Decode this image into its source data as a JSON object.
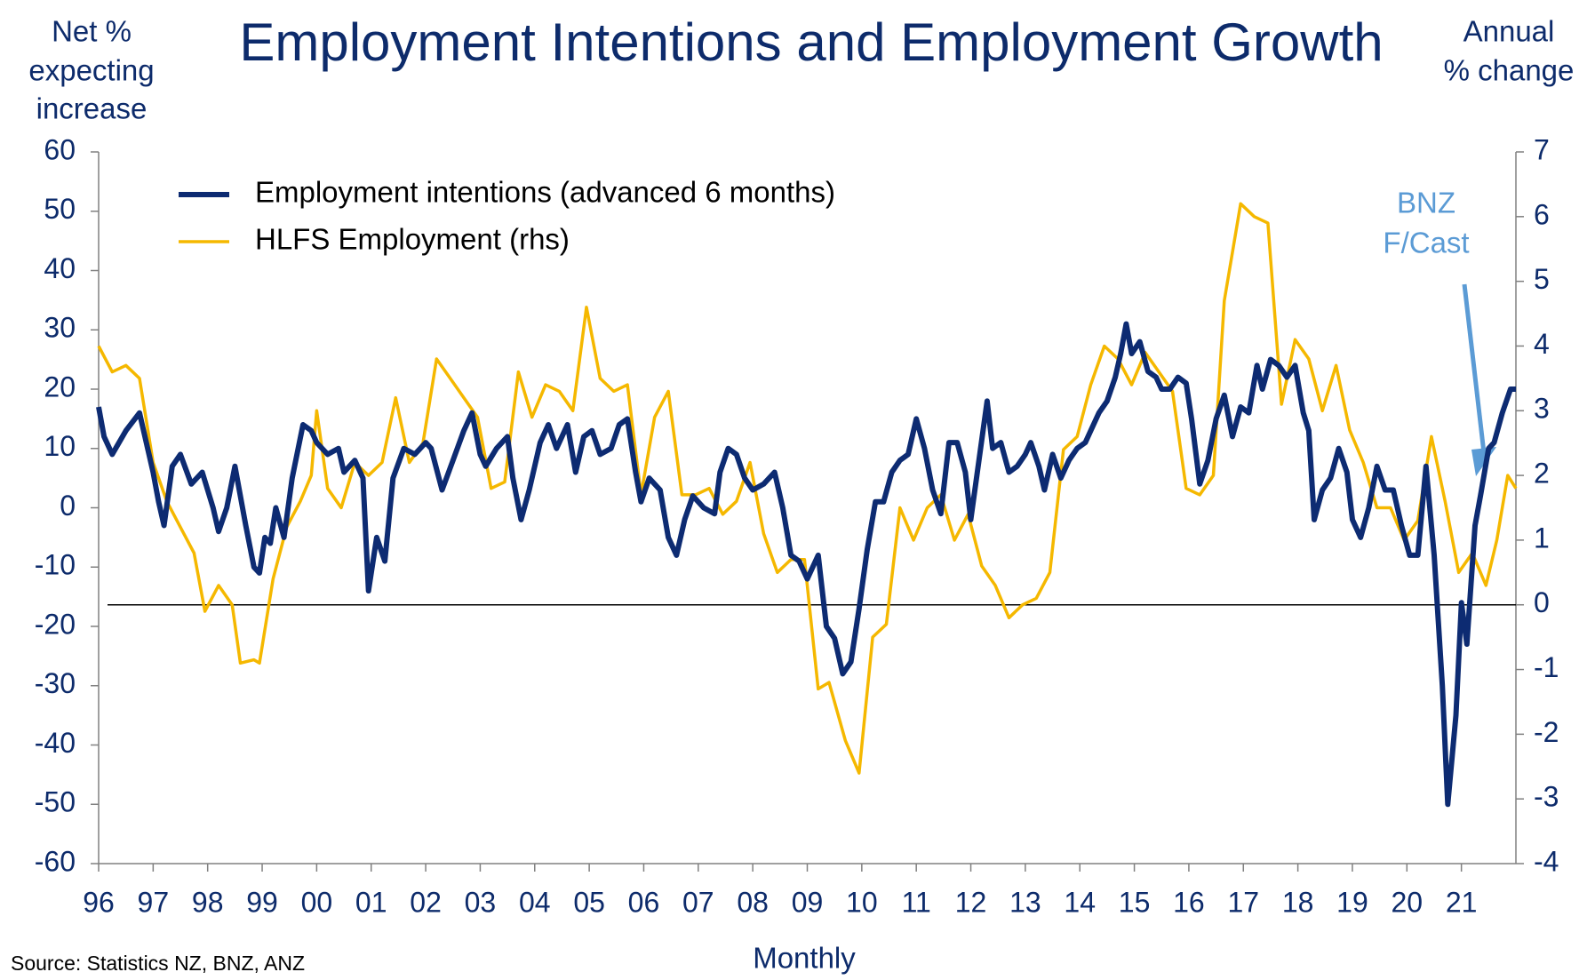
{
  "chart_data": {
    "type": "line",
    "title": "Employment Intentions and Employment Growth",
    "y_label": [
      "Net %",
      "expecting",
      "increase"
    ],
    "y2_label": [
      "Annual",
      "% change"
    ],
    "x_label": "Monthly",
    "source": "Source: Statistics NZ, BNZ, ANZ",
    "annotation": [
      "BNZ",
      "F/Cast"
    ],
    "annotation_color": "#5b9bd5",
    "legend": "upper left",
    "xlim": [
      1996,
      2022
    ],
    "xticks": [
      {
        "value": 1996,
        "label": "96"
      },
      {
        "value": 1997,
        "label": "97"
      },
      {
        "value": 1998,
        "label": "98"
      },
      {
        "value": 1999,
        "label": "99"
      },
      {
        "value": 2000,
        "label": "00"
      },
      {
        "value": 2001,
        "label": "01"
      },
      {
        "value": 2002,
        "label": "02"
      },
      {
        "value": 2003,
        "label": "03"
      },
      {
        "value": 2004,
        "label": "04"
      },
      {
        "value": 2005,
        "label": "05"
      },
      {
        "value": 2006,
        "label": "06"
      },
      {
        "value": 2007,
        "label": "07"
      },
      {
        "value": 2008,
        "label": "08"
      },
      {
        "value": 2009,
        "label": "09"
      },
      {
        "value": 2010,
        "label": "10"
      },
      {
        "value": 2011,
        "label": "11"
      },
      {
        "value": 2012,
        "label": "12"
      },
      {
        "value": 2013,
        "label": "13"
      },
      {
        "value": 2014,
        "label": "14"
      },
      {
        "value": 2015,
        "label": "15"
      },
      {
        "value": 2016,
        "label": "16"
      },
      {
        "value": 2017,
        "label": "17"
      },
      {
        "value": 2018,
        "label": "18"
      },
      {
        "value": 2019,
        "label": "19"
      },
      {
        "value": 2020,
        "label": "20"
      },
      {
        "value": 2021,
        "label": "21"
      }
    ],
    "ylim": [
      -60,
      60
    ],
    "yticks": [
      -60,
      -50,
      -40,
      -30,
      -20,
      -10,
      0,
      10,
      20,
      30,
      40,
      50,
      60
    ],
    "y2lim": [
      -4,
      7
    ],
    "y2ticks": [
      -4,
      -3,
      -2,
      -1,
      0,
      1,
      2,
      3,
      4,
      5,
      6,
      7
    ],
    "zero_line_axis": "y2",
    "series": [
      {
        "name": "Employment intentions (advanced 6 months)",
        "color": "#0d2b72",
        "axis": "y",
        "x": [
          1996.0,
          1996.1,
          1996.25,
          1996.5,
          1996.75,
          1997.0,
          1997.1,
          1997.2,
          1997.35,
          1997.5,
          1997.7,
          1997.9,
          1998.1,
          1998.2,
          1998.35,
          1998.5,
          1998.7,
          1998.85,
          1998.95,
          1999.05,
          1999.15,
          1999.25,
          1999.4,
          1999.55,
          1999.75,
          1999.9,
          2000.0,
          2000.2,
          2000.4,
          2000.5,
          2000.7,
          2000.85,
          2000.95,
          2001.1,
          2001.25,
          2001.4,
          2001.6,
          2001.8,
          2002.0,
          2002.1,
          2002.3,
          2002.5,
          2002.7,
          2002.85,
          2003.0,
          2003.1,
          2003.3,
          2003.5,
          2003.6,
          2003.75,
          2003.9,
          2004.1,
          2004.25,
          2004.4,
          2004.6,
          2004.75,
          2004.9,
          2005.05,
          2005.2,
          2005.4,
          2005.55,
          2005.7,
          2005.85,
          2005.95,
          2006.1,
          2006.3,
          2006.45,
          2006.6,
          2006.75,
          2006.9,
          2007.1,
          2007.3,
          2007.4,
          2007.55,
          2007.7,
          2007.85,
          2008.0,
          2008.2,
          2008.4,
          2008.55,
          2008.7,
          2008.85,
          2009.0,
          2009.2,
          2009.35,
          2009.5,
          2009.65,
          2009.8,
          2009.95,
          2010.1,
          2010.25,
          2010.4,
          2010.55,
          2010.7,
          2010.85,
          2011.0,
          2011.15,
          2011.3,
          2011.45,
          2011.6,
          2011.75,
          2011.9,
          2012.0,
          2012.15,
          2012.3,
          2012.4,
          2012.55,
          2012.7,
          2012.85,
          2013.0,
          2013.1,
          2013.25,
          2013.35,
          2013.5,
          2013.65,
          2013.8,
          2013.95,
          2014.1,
          2014.2,
          2014.35,
          2014.5,
          2014.65,
          2014.75,
          2014.85,
          2014.95,
          2015.1,
          2015.25,
          2015.4,
          2015.5,
          2015.65,
          2015.8,
          2015.95,
          2016.05,
          2016.2,
          2016.35,
          2016.5,
          2016.65,
          2016.8,
          2016.95,
          2017.1,
          2017.25,
          2017.35,
          2017.5,
          2017.65,
          2017.8,
          2017.95,
          2018.1,
          2018.2,
          2018.3,
          2018.45,
          2018.6,
          2018.75,
          2018.9,
          2019.0,
          2019.15,
          2019.3,
          2019.45,
          2019.6,
          2019.75,
          2019.9,
          2020.05,
          2020.2,
          2020.35,
          2020.5,
          2020.65,
          2020.75,
          2020.9,
          2021.0,
          2021.1,
          2021.25,
          2021.35,
          2021.5,
          2021.6,
          2021.75,
          2021.9,
          2022.0
        ],
        "values": [
          17,
          12,
          9,
          13,
          16,
          6,
          1,
          -3,
          7,
          9,
          4,
          6,
          0,
          -4,
          0,
          7,
          -3,
          -10,
          -11,
          -5,
          -6,
          0,
          -5,
          5,
          14,
          13,
          11,
          9,
          10,
          6,
          8,
          5,
          -14,
          -5,
          -9,
          5,
          10,
          9,
          11,
          10,
          3,
          8,
          13,
          16,
          9,
          7,
          10,
          12,
          5,
          -2,
          3,
          11,
          14,
          10,
          14,
          6,
          12,
          13,
          9,
          10,
          14,
          15,
          6,
          1,
          5,
          3,
          -5,
          -8,
          -2,
          2,
          0,
          -1,
          6,
          10,
          9,
          5,
          3,
          4,
          6,
          0,
          -8,
          -9,
          -12,
          -8,
          -20,
          -22,
          -28,
          -26,
          -17,
          -7,
          1,
          1,
          6,
          8,
          9,
          15,
          10,
          3,
          -1,
          11,
          11,
          6,
          -2,
          8,
          18,
          10,
          11,
          6,
          7,
          9,
          11,
          7,
          3,
          9,
          5,
          8,
          10,
          11,
          13,
          16,
          18,
          22,
          26,
          31,
          26,
          28,
          23,
          22,
          20,
          20,
          22,
          21,
          15,
          4,
          8,
          15,
          19,
          12,
          17,
          16,
          24,
          20,
          25,
          24,
          22,
          24,
          16,
          13,
          -2,
          3,
          5,
          10,
          6,
          -2,
          -5,
          0,
          7,
          3,
          3,
          -3,
          -8,
          -8,
          7,
          -8,
          -30,
          -50,
          -35,
          -16,
          -23,
          -3,
          2,
          10,
          11,
          16,
          20,
          20
        ]
      },
      {
        "name": "HLFS Employment (rhs)",
        "color": "#f5b800",
        "axis": "y2",
        "x": [
          1996.0,
          1996.25,
          1996.5,
          1996.75,
          1997.0,
          1997.25,
          1997.5,
          1997.75,
          1997.95,
          1998.2,
          1998.45,
          1998.6,
          1998.85,
          1998.95,
          1999.2,
          1999.45,
          1999.7,
          1999.9,
          2000.0,
          2000.2,
          2000.45,
          2000.7,
          2000.95,
          2001.2,
          2001.45,
          2001.7,
          2001.95,
          2002.2,
          2002.45,
          2002.7,
          2002.95,
          2003.2,
          2003.45,
          2003.7,
          2003.95,
          2004.2,
          2004.45,
          2004.7,
          2004.95,
          2005.2,
          2005.45,
          2005.7,
          2005.95,
          2006.2,
          2006.45,
          2006.7,
          2006.95,
          2007.2,
          2007.45,
          2007.7,
          2007.95,
          2008.2,
          2008.45,
          2008.7,
          2008.95,
          2009.2,
          2009.4,
          2009.7,
          2009.95,
          2010.2,
          2010.45,
          2010.7,
          2010.95,
          2011.2,
          2011.45,
          2011.7,
          2011.95,
          2012.2,
          2012.45,
          2012.7,
          2012.95,
          2013.2,
          2013.45,
          2013.7,
          2013.95,
          2014.2,
          2014.45,
          2014.7,
          2014.95,
          2015.2,
          2015.45,
          2015.7,
          2015.95,
          2016.2,
          2016.45,
          2016.65,
          2016.95,
          2017.2,
          2017.45,
          2017.7,
          2017.95,
          2018.2,
          2018.45,
          2018.7,
          2018.95,
          2019.2,
          2019.45,
          2019.7,
          2019.95,
          2020.2,
          2020.45,
          2020.7,
          2020.95,
          2021.2,
          2021.45,
          2021.65,
          2021.85,
          2022.0
        ],
        "values": [
          4.0,
          3.6,
          3.7,
          3.5,
          2.2,
          1.6,
          1.2,
          0.8,
          -0.1,
          0.3,
          0,
          -0.9,
          -0.85,
          -0.9,
          0.4,
          1.2,
          1.6,
          2.0,
          3.0,
          1.8,
          1.5,
          2.2,
          2.0,
          2.2,
          3.2,
          2.2,
          2.5,
          3.8,
          3.5,
          3.2,
          2.9,
          1.8,
          1.9,
          3.6,
          2.9,
          3.4,
          3.3,
          3.0,
          4.6,
          3.5,
          3.3,
          3.4,
          1.7,
          2.9,
          3.3,
          1.7,
          1.7,
          1.8,
          1.4,
          1.6,
          2.2,
          1.1,
          0.5,
          0.7,
          0.7,
          -1.3,
          -1.2,
          -2.1,
          -2.6,
          -0.5,
          -0.3,
          1.5,
          1.0,
          1.5,
          1.7,
          1.0,
          1.4,
          0.6,
          0.3,
          -0.2,
          0,
          0.1,
          0.5,
          2.4,
          2.6,
          3.4,
          4.0,
          3.8,
          3.4,
          3.9,
          3.6,
          3.3,
          1.8,
          1.7,
          2.0,
          4.7,
          6.2,
          6.0,
          5.9,
          3.1,
          4.1,
          3.8,
          3.0,
          3.7,
          2.7,
          2.2,
          1.5,
          1.5,
          1.0,
          1.3,
          2.6,
          1.6,
          0.5,
          0.8,
          0.3,
          1.0,
          2.0,
          1.8
        ]
      }
    ]
  }
}
